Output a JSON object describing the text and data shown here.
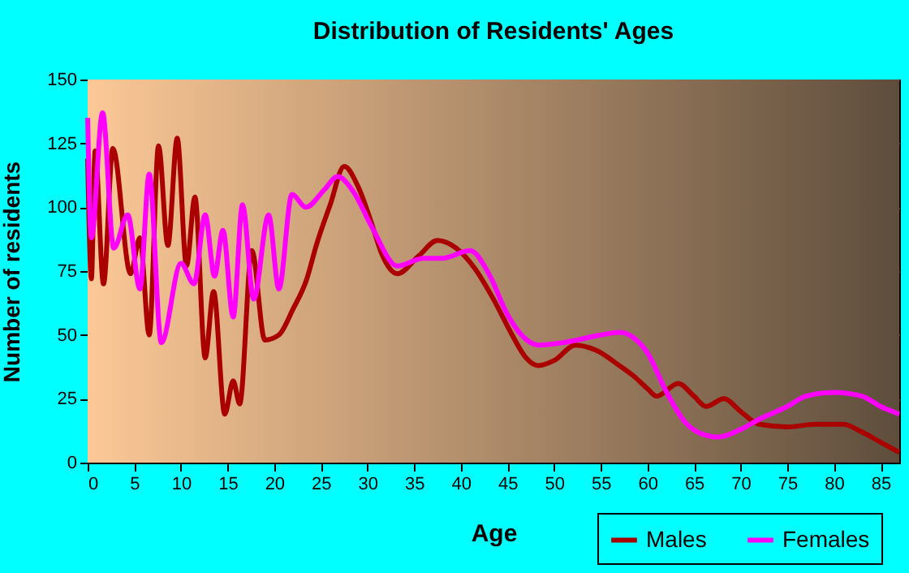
{
  "chart_data": {
    "type": "line",
    "title": "Distribution of Residents' Ages",
    "xlabel": "Age",
    "ylabel": "Number of residents",
    "xlim": [
      0,
      87
    ],
    "xticks": [
      0,
      5,
      10,
      15,
      20,
      25,
      30,
      35,
      40,
      45,
      50,
      55,
      60,
      65,
      70,
      75,
      80,
      85
    ],
    "ylim": [
      0,
      150
    ],
    "yticks": [
      0,
      25,
      50,
      75,
      100,
      125,
      150
    ],
    "grid": true,
    "legend": "bottom right",
    "marker": "none",
    "line_style": "solid",
    "series": [
      {
        "name": "Males",
        "color": "#aa0000",
        "x": [
          0,
          0.4,
          0.8,
          1.7,
          2.7,
          4.6,
          5.6,
          6.6,
          7.6,
          8.6,
          9.6,
          10.6,
          11.5,
          12.6,
          13.5,
          14.7,
          15.6,
          16.3,
          17.6,
          19,
          20.5,
          22,
          23.5,
          24.5,
          26,
          27.5,
          29,
          30.5,
          31.5,
          33.2,
          35.5,
          37.5,
          39.5,
          41.5,
          43.5,
          45.5,
          47,
          48.3,
          50,
          52.3,
          54.5,
          57,
          58.5,
          60,
          61,
          63.3,
          65,
          66.3,
          68.2,
          70,
          72,
          75,
          78,
          81,
          83,
          85,
          87
        ],
        "values": [
          119,
          72,
          122,
          70,
          123,
          74,
          88,
          50,
          124,
          85,
          127,
          77,
          104,
          41,
          67,
          19,
          32,
          23,
          83,
          48,
          50,
          60,
          72,
          85,
          101,
          116,
          108,
          93,
          82,
          74,
          81,
          87,
          84,
          76,
          64,
          50,
          41,
          38,
          40,
          46,
          44,
          38,
          34,
          29,
          26,
          31,
          26,
          22,
          25,
          20,
          15,
          14,
          15,
          15,
          12,
          8,
          4
        ]
      },
      {
        "name": "Females",
        "color": "#ff00ff",
        "x": [
          0,
          0.4,
          1.6,
          2.8,
          4.3,
          5.6,
          6.6,
          7.9,
          10,
          11.4,
          12.6,
          13.6,
          14.5,
          15.6,
          16.6,
          17.8,
          19.4,
          20.5,
          21.9,
          23.4,
          25.4,
          26.8,
          28.5,
          30.5,
          33.2,
          36,
          38,
          41,
          43,
          45,
          46.5,
          48.3,
          51,
          55,
          57,
          58.5,
          60,
          62,
          64,
          66,
          67.6,
          70,
          72,
          75,
          77,
          80,
          83,
          85,
          87
        ],
        "values": [
          135,
          88,
          137,
          84,
          97,
          68,
          113,
          47,
          78,
          70,
          97,
          73,
          91,
          57,
          101,
          64,
          97,
          68,
          105,
          100,
          107,
          112,
          106,
          92,
          77,
          80,
          80,
          83,
          74,
          58,
          50,
          46,
          47,
          50,
          51,
          49,
          43,
          28,
          16,
          11,
          10,
          13,
          17,
          22,
          26,
          27.5,
          26,
          22,
          19
        ]
      }
    ]
  }
}
